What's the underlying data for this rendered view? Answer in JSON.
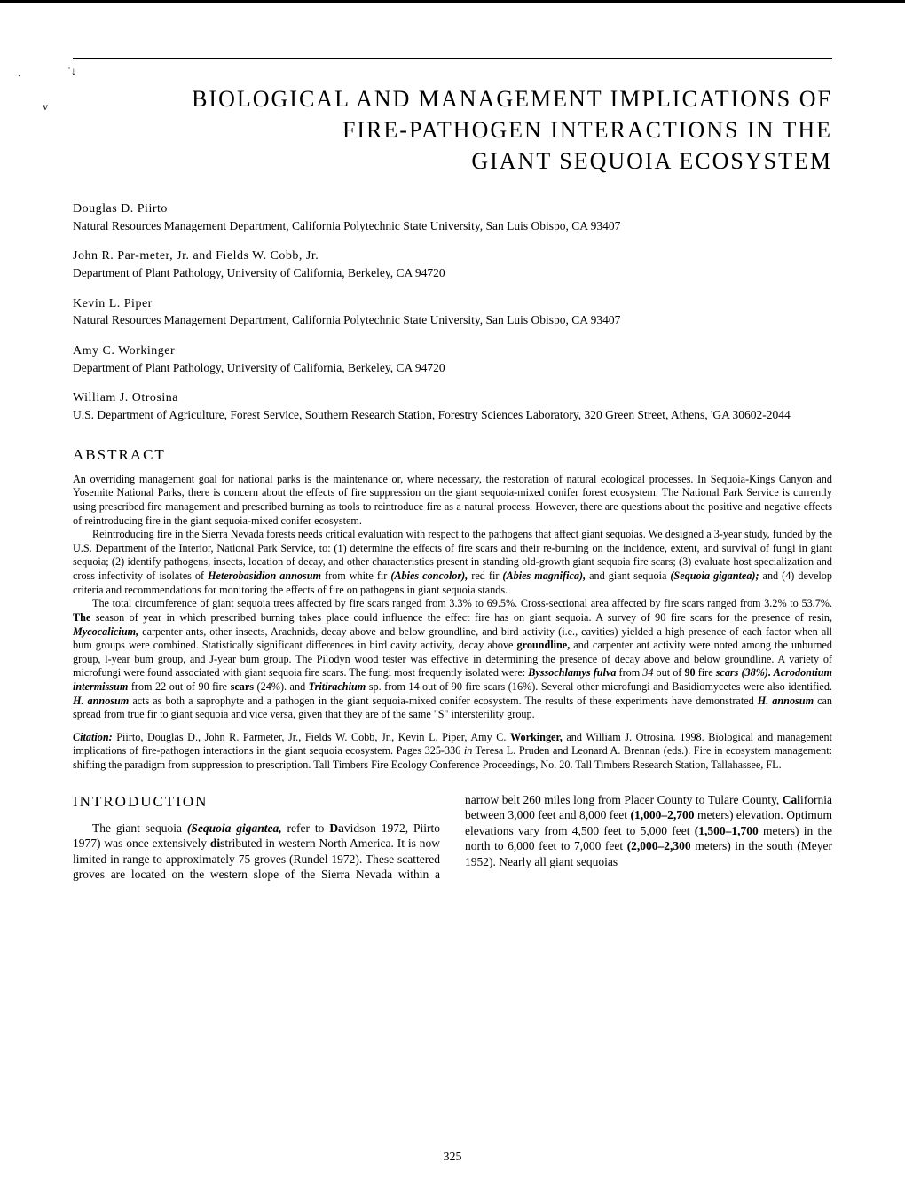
{
  "page_number": "325",
  "title_line1": "BIOLOGICAL AND MANAGEMENT IMPLICATIONS OF",
  "title_line2": "FIRE-PATHOGEN INTERACTIONS IN THE",
  "title_line3": "GIANT SEQUOIA ECOSYSTEM",
  "authors": [
    {
      "name": "Douglas D. Piirto",
      "affil": "Natural Resources Management Department, California Polytechnic State University, San Luis Obispo, CA 93407"
    },
    {
      "name": "John R. Par-meter, Jr. and Fields W. Cobb, Jr.",
      "affil": "Department of Plant Pathology, University of California, Berkeley, CA 94720"
    },
    {
      "name": "Kevin L. Piper",
      "affil": "Natural Resources Management Department, California Polytechnic State University, San Luis Obispo, CA 93407"
    },
    {
      "name": "Amy C. Workinger",
      "affil": "Department of Plant Pathology, University of California, Berkeley, CA 94720"
    },
    {
      "name": "William J. Otrosina",
      "affil": "U.S. Department of Agriculture, Forest Service, Southern Research Station, Forestry Sciences Laboratory, 320 Green Street, Athens, 'GA 30602-2044"
    }
  ],
  "section_abstract": "ABSTRACT",
  "abstract_p1": "An overriding management goal for national parks is the maintenance or, where necessary, the restoration of natural ecological processes. In Sequoia-Kings Canyon and Yosemite National Parks, there is concern about the effects of fire suppression on the giant sequoia-mixed conifer forest ecosystem. The National Park Service is currently using prescribed fire management and prescribed burning as tools to reintroduce fire as a natural process. However, there are questions about the positive and negative effects of reintroducing fire in the giant sequoia-mixed conifer ecosystem.",
  "abstract_p2_pre": "Reintroducing fire in the Sierra Nevada forests needs critical evaluation with respect to the pathogens that affect giant sequoias. We designed a 3-year study, funded by the U.S. Department of the Interior, National Park Service, to: (1) determine the effects of fire scars and their re-burning on the incidence, extent, and survival of fungi in giant sequoia; (2) identify pathogens, insects, location of decay, and other characteristics present in standing old-growth giant sequoia fire scars; (3) evaluate host specialization and cross infectivity of isolates of ",
  "abstract_p2_sp1": "Heterobasidion annosum",
  "abstract_p2_mid1": " from white fir ",
  "abstract_p2_sp2": "(Abies concolor),",
  "abstract_p2_mid2": " red fir ",
  "abstract_p2_sp3": "(Abies magnifica),",
  "abstract_p2_mid3": " and giant sequoia ",
  "abstract_p2_sp4": "(Sequoia gigantea);",
  "abstract_p2_post": " and (4) develop criteria and recommendations for monitoring the effects of fire on pathogens in giant sequoia stands.",
  "abstract_p3_a": "The total circumference of giant sequoia trees affected by fire scars ranged from 3.3% to 69.5%. Cross-sectional area affected by fire scars ranged from 3.2% to 53.7%. ",
  "abstract_p3_the": "The",
  "abstract_p3_b": " season of year in which prescribed burning takes place could influence the effect fire has on giant sequoia. A survey of 90 fire scars for the presence of resin, ",
  "abstract_p3_sp1": "Mycocalicium,",
  "abstract_p3_c": " carpenter ants, other insects, Arachnids, decay above and below groundline, and bird activity (i.e., cavities) yielded a high presence of each factor when all bum groups were combined. Statistically significant differences in bird cavity activity, decay above ",
  "abstract_p3_gl": "groundline,",
  "abstract_p3_d": " and carpenter ant activity were noted among the unburned group, l-year bum group, and J-year bum group. The Pilodyn wood tester was effective in determining the presence of decay above and below groundline. A variety of microfungi were found associated with giant sequoia fire scars. The fungi most frequently isolated were: ",
  "abstract_p3_sp2": "Byssochlamys fulva",
  "abstract_p3_e": " from ",
  "abstract_p3_n1": "34",
  "abstract_p3_f": " out of ",
  "abstract_p3_n2": "90",
  "abstract_p3_g": " fire ",
  "abstract_p3_sp3": "scars (38%). Acrodontium intermissum",
  "abstract_p3_h": " from 22 out of 90 fire ",
  "abstract_p3_scars": "scars",
  "abstract_p3_i": " (24%). and ",
  "abstract_p3_sp4": "Tritirachium",
  "abstract_p3_j": " sp. from 14 out of 90 fire scars (16%). Several other microfungi and Basidiomycetes were also identified. ",
  "abstract_p3_sp5": "H. annosum",
  "abstract_p3_k": " acts as both a saprophyte and a pathogen in the giant sequoia-mixed conifer ecosystem. The results of these experiments have demonstrated ",
  "abstract_p3_sp6": "H. annosum",
  "abstract_p3_l": " can spread from true fir to giant sequoia and vice versa, given that they are of the same \"S\" intersterility group.",
  "citation_lead": "Citation:",
  "citation_body_a": " Piirto, Douglas D., John R. Parmeter, Jr., Fields W. Cobb, Jr., Kevin L. Piper, Amy C. ",
  "citation_work": "Workinger,",
  "citation_body_b": " and William J. Otrosina. 1998. Biological and management implications of fire-pathogen interactions in the giant sequoia ecosystem. Pages 325-336 ",
  "citation_in": "in",
  "citation_body_c": " Teresa L. Pruden and Leonard A. Brennan (eds.). Fire in ecosystem management: shifting the paradigm from suppression to prescription. Tall Timbers Fire Ecology Conference Proceedings, No. 20. Tall Timbers Research Station, Tallahassee, FL.",
  "section_intro": "INTRODUCTION",
  "intro_a": "The giant sequoia ",
  "intro_sp1": "(Sequoia gigantea,",
  "intro_b": " refer to ",
  "intro_da": "Da",
  "intro_c": "vidson 1972, Piirto 1977) was once extensively ",
  "intro_dis": "dis",
  "intro_d": "tributed in western North America. It is now limited in range to approximately 75 groves (Rundel 1972). These scattered groves are located on the western slope of the Sierra Nevada within a narrow belt 260 miles long from Placer County to Tulare County, ",
  "intro_cal": "Cal",
  "intro_e": "ifornia between 3,000 feet and 8,000 feet ",
  "intro_m1": "(1,000–2,700",
  "intro_f": " meters) elevation. Optimum elevations vary from 4,500 feet to 5,000 feet ",
  "intro_m2": "(1,500–1,700",
  "intro_g": " meters) in the north to 6,000 feet to 7,000 feet ",
  "intro_m3": "(2,000–2,300",
  "intro_h": " meters) in the south (Meyer 1952). Nearly all giant sequoias"
}
